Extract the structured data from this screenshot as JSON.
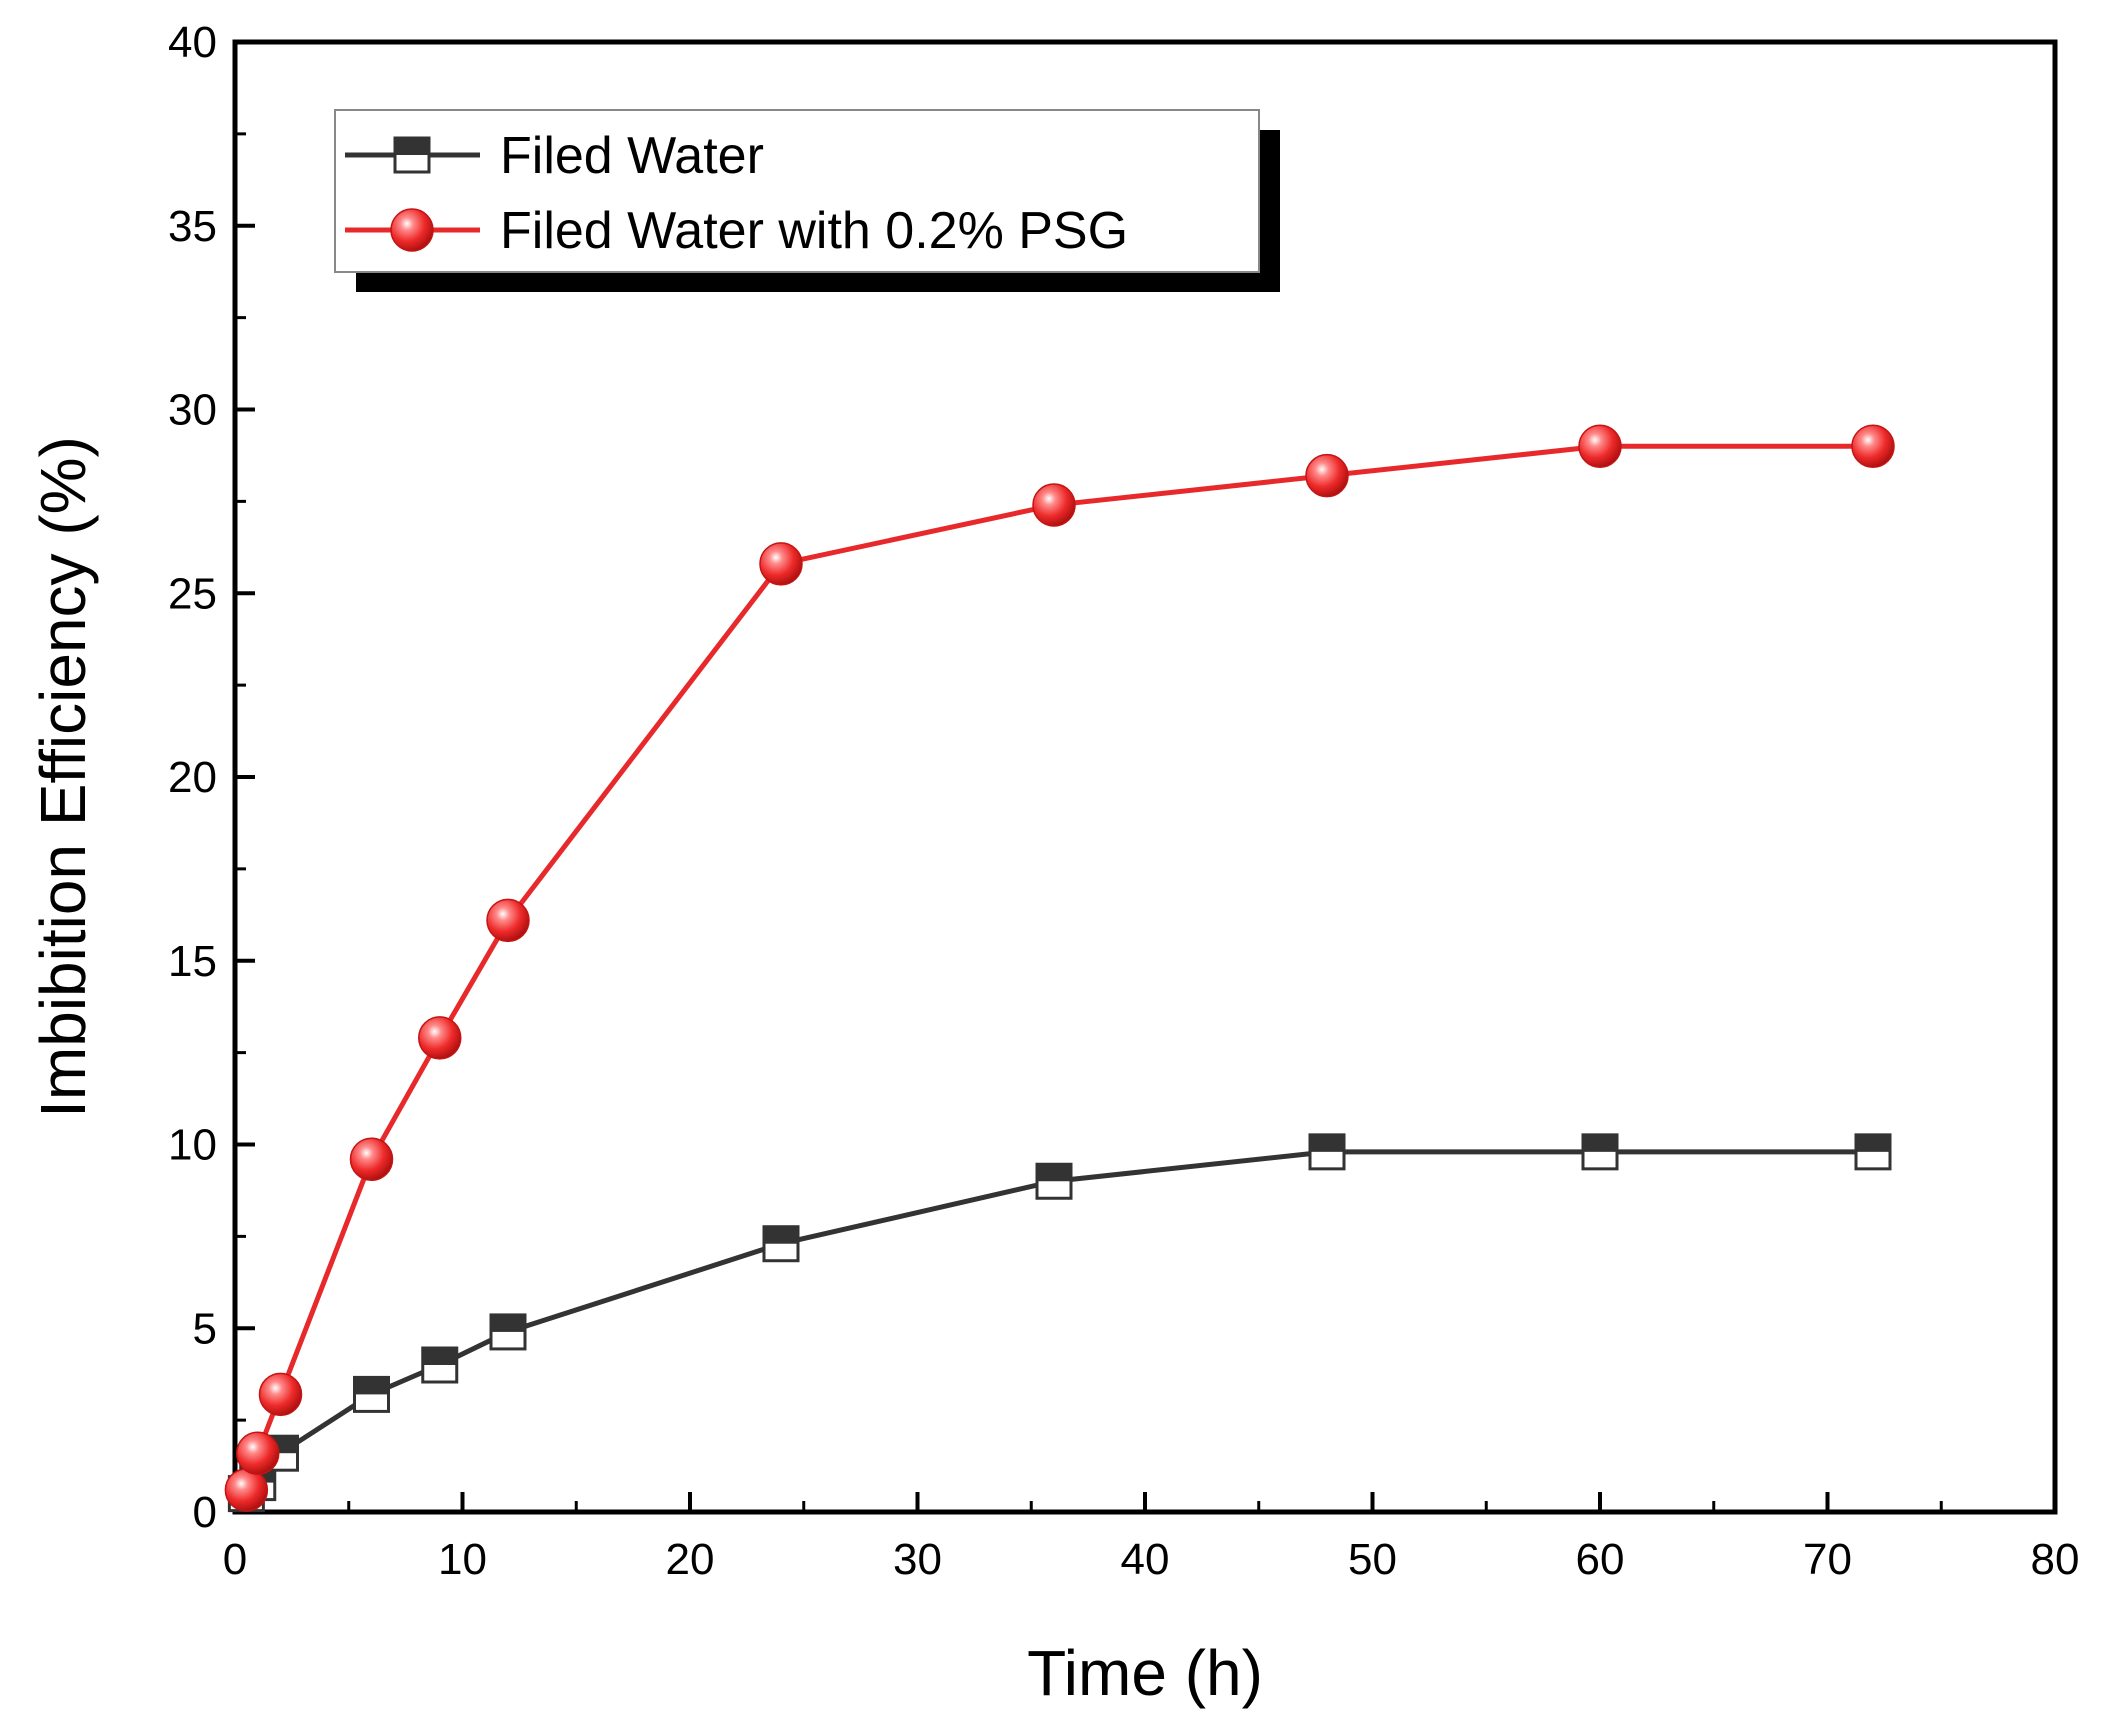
{
  "chart_data": {
    "type": "line",
    "title": "",
    "xlabel": "Time (h)",
    "ylabel": "Imbibition Efficiency (%)",
    "xlim": [
      0,
      80
    ],
    "ylim": [
      0,
      40
    ],
    "x_ticks": [
      0,
      10,
      20,
      30,
      40,
      50,
      60,
      70,
      80
    ],
    "y_ticks": [
      0,
      5,
      10,
      15,
      20,
      25,
      30,
      35,
      40
    ],
    "grid": false,
    "legend_position": "top-left",
    "series": [
      {
        "name": "Filed Water",
        "marker": "half-filled-square",
        "color": "#333333",
        "x": [
          0.5,
          1,
          2,
          6,
          9,
          12,
          24,
          36,
          48,
          60,
          72
        ],
        "y": [
          0.5,
          0.8,
          1.6,
          3.2,
          4.0,
          4.9,
          7.3,
          9.0,
          9.8,
          9.8,
          9.8
        ]
      },
      {
        "name": "Filed Water with 0.2% PSG",
        "marker": "sphere",
        "color": "#e8292b",
        "x": [
          0.5,
          1,
          2,
          6,
          9,
          12,
          24,
          36,
          48,
          60,
          72
        ],
        "y": [
          0.6,
          1.6,
          3.2,
          9.6,
          12.9,
          16.1,
          25.8,
          27.4,
          28.2,
          29.0,
          29.0
        ]
      }
    ]
  }
}
